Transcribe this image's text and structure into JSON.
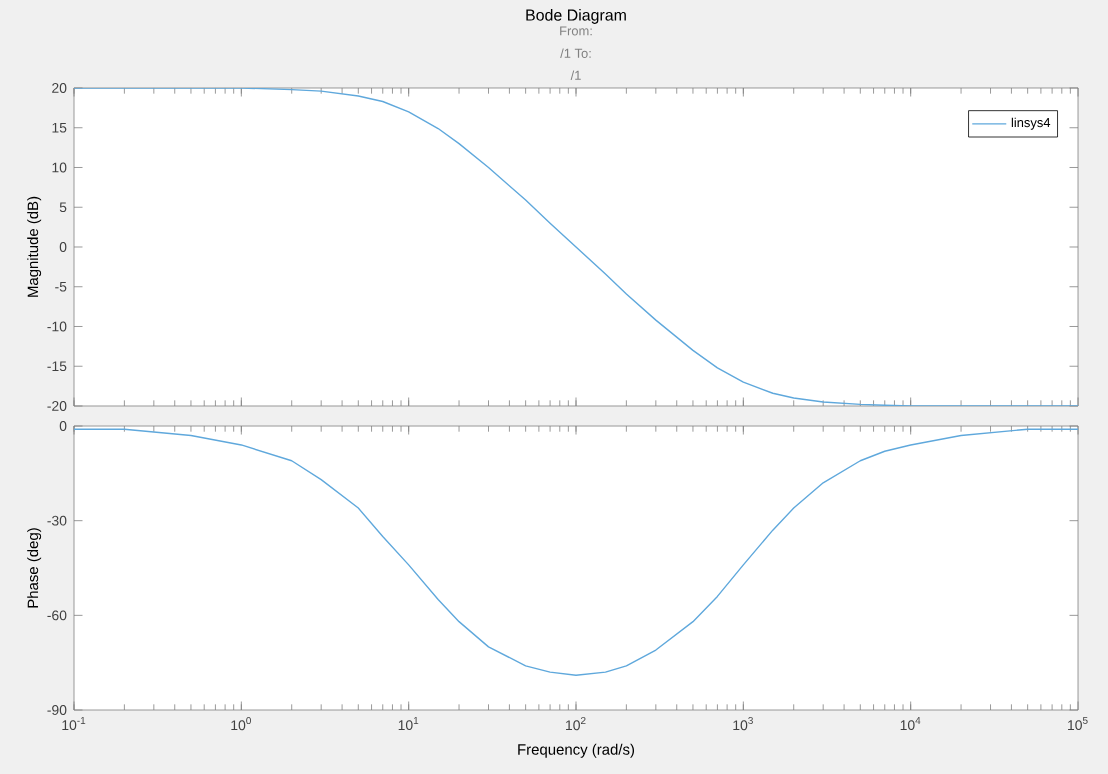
{
  "chart_data": [
    {
      "type": "line",
      "title": "Bode Diagram",
      "annotations": [
        "From:",
        "/1  To:",
        "/1"
      ],
      "ylabel": "Magnitude (dB)",
      "log": "x",
      "legend": "top right",
      "line_style": "solid",
      "tick_labels": "y",
      "xlim": [
        0.1,
        100000
      ],
      "xticks": [
        {
          "value": 0.1,
          "label": null
        },
        {
          "value": 1,
          "label": null
        },
        {
          "value": 10,
          "label": null
        },
        {
          "value": 100,
          "label": null
        },
        {
          "value": 1000,
          "label": null
        },
        {
          "value": 10000,
          "label": null
        },
        {
          "value": 100000,
          "label": null
        }
      ],
      "ylim": [
        -20,
        20
      ],
      "yticks": [
        -20,
        -15,
        -10,
        -5,
        0,
        5,
        10,
        15,
        20
      ],
      "series": [
        {
          "name": "linsys4",
          "color": "#5fa8dc",
          "x": [
            0.1,
            0.2,
            0.5,
            1,
            2,
            3,
            5,
            7,
            10,
            15,
            20,
            30,
            50,
            70,
            100,
            150,
            200,
            300,
            500,
            700,
            1000,
            1500,
            2000,
            3000,
            5000,
            7000,
            10000,
            20000,
            50000,
            100000
          ],
          "values": [
            20,
            20,
            20,
            20,
            19.8,
            19.6,
            19,
            18.3,
            17,
            14.9,
            13,
            10,
            5.9,
            3,
            0,
            -3.4,
            -5.9,
            -9.2,
            -13,
            -15.2,
            -17,
            -18.4,
            -19,
            -19.5,
            -19.8,
            -19.9,
            -20,
            -20,
            -20,
            -20
          ]
        }
      ]
    },
    {
      "type": "line",
      "xlabel": "Frequency  (rad/s)",
      "ylabel": "Phase (deg)",
      "log": "x",
      "legend": false,
      "line_style": "solid",
      "xlim": [
        0.1,
        100000
      ],
      "xticks": [
        {
          "value": 0.1,
          "label": "10$^{-1}$"
        },
        {
          "value": 1,
          "label": "10$^{0}$"
        },
        {
          "value": 10,
          "label": "10$^{1}$"
        },
        {
          "value": 100,
          "label": "10$^{2}$"
        },
        {
          "value": 1000,
          "label": "10$^{3}$"
        },
        {
          "value": 10000,
          "label": "10$^{4}$"
        },
        {
          "value": 100000,
          "label": "10$^{5}$"
        }
      ],
      "ylim": [
        -90,
        0
      ],
      "yticks": [
        -90,
        -60,
        -30,
        0
      ],
      "series": [
        {
          "color": "#5fa8dc",
          "x": [
            0.1,
            0.2,
            0.5,
            1,
            2,
            3,
            5,
            7,
            10,
            15,
            20,
            30,
            50,
            70,
            100,
            150,
            200,
            300,
            500,
            700,
            1000,
            1500,
            2000,
            3000,
            5000,
            7000,
            10000,
            20000,
            50000,
            100000
          ],
          "values": [
            -1,
            -1,
            -3,
            -6,
            -11,
            -17,
            -26,
            -35,
            -44,
            -55,
            -62,
            -70,
            -76,
            -78,
            -79,
            -78,
            -76,
            -71,
            -62,
            -54,
            -44,
            -33,
            -26,
            -18,
            -11,
            -8,
            -6,
            -3,
            -1,
            -1
          ]
        }
      ]
    }
  ]
}
